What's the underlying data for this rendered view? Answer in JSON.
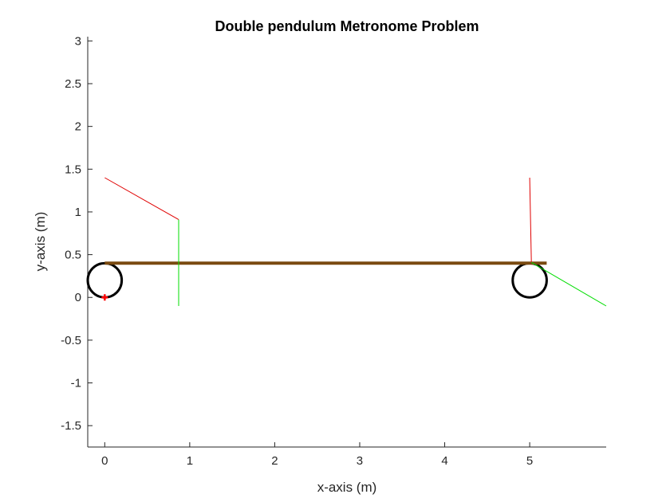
{
  "chart_data": {
    "type": "line",
    "title": "Double pendulum Metronome Problem",
    "xlabel": "x-axis (m)",
    "ylabel": "y-axis (m)",
    "xlim": [
      -0.2,
      5.9
    ],
    "ylim": [
      -1.75,
      3.05
    ],
    "xticks": [
      "0",
      "1",
      "2",
      "3",
      "4",
      "5"
    ],
    "yticks": [
      "3",
      "2.5",
      "2",
      "1.5",
      "1",
      "0.5",
      "0",
      "-0.5",
      "-1",
      "-1.5"
    ],
    "grid": false,
    "colors": {
      "beam": "#7a4a10",
      "upper_links": "#e00000",
      "lower_links": "#00dd00",
      "wheels": "#000000",
      "marker": "#ff0000"
    },
    "series": [
      {
        "role": "beam",
        "x": [
          0,
          5.2
        ],
        "y": [
          0.4,
          0.4
        ]
      },
      {
        "role": "left-pendulum-upper",
        "x": [
          0,
          0.87
        ],
        "y": [
          1.4,
          0.91
        ]
      },
      {
        "role": "left-pendulum-lower",
        "x": [
          0.87,
          0.87
        ],
        "y": [
          0.91,
          -0.1
        ]
      },
      {
        "role": "right-pendulum-upper",
        "x": [
          5.0,
          5.02
        ],
        "y": [
          1.4,
          0.41
        ]
      },
      {
        "role": "right-pendulum-lower",
        "x": [
          5.02,
          5.9
        ],
        "y": [
          0.41,
          -0.1
        ]
      }
    ],
    "wheels": [
      {
        "cx": 0.0,
        "cy": 0.2,
        "r": 0.2
      },
      {
        "cx": 5.0,
        "cy": 0.2,
        "r": 0.2
      }
    ],
    "markers": [
      {
        "x": 0.0,
        "y": 0.0,
        "symbol": "+"
      }
    ]
  }
}
